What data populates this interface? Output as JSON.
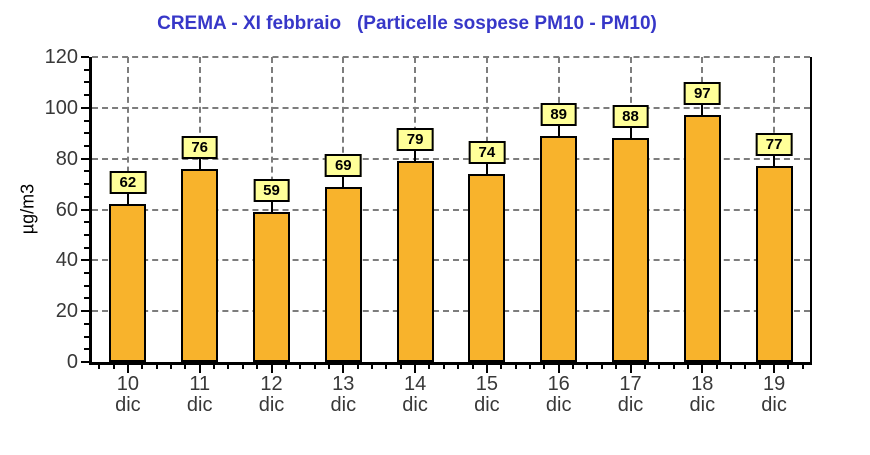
{
  "chart_data": {
    "type": "bar",
    "title": "CREMA - XI febbraio   (Particelle sospese PM10 - PM10)",
    "categories": [
      "10",
      "11",
      "12",
      "13",
      "14",
      "15",
      "16",
      "17",
      "18",
      "19"
    ],
    "category_subline": "dic",
    "values": [
      62,
      76,
      59,
      69,
      79,
      74,
      89,
      88,
      97,
      77
    ],
    "xlabel": "",
    "ylabel": "µg/m3",
    "ylim": [
      0,
      120
    ],
    "yticks": [
      0,
      20,
      40,
      60,
      80,
      100,
      120
    ],
    "grid": "dashed horizontal lines at y ticks and dashed vertical lines at category centers",
    "legend_position": "none",
    "data_labels": "values shown in boxed callouts above each bar",
    "colors": {
      "title": "#3737c8",
      "bar_fill": "#f8b32c",
      "bar_border": "#000000",
      "label_box_fill": "#ffff99",
      "label_box_border": "#000000",
      "grid": "#7d7d7d",
      "axis": "#000000",
      "tick_text": "#383838"
    }
  }
}
